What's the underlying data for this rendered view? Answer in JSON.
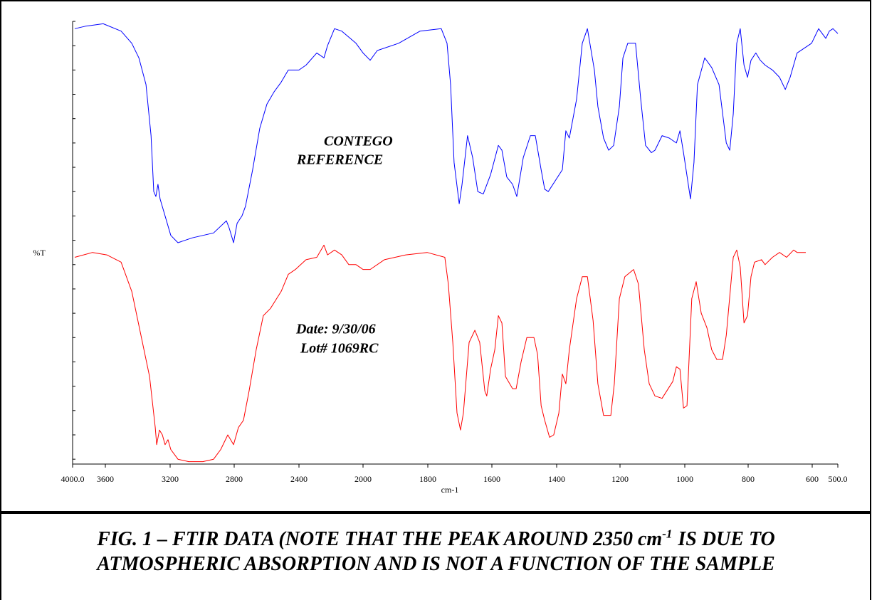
{
  "chart_data": {
    "type": "line",
    "xlabel": "cm-1",
    "ylabel": "%T",
    "xlim": [
      4000,
      500
    ],
    "xticks": [
      {
        "value": 4000,
        "label": "4000.0"
      },
      3600,
      3200,
      2800,
      2400,
      2000,
      1800,
      1600,
      1400,
      1200,
      1000,
      800,
      600,
      {
        "value": 500,
        "label": "500.0"
      }
    ],
    "ylim": [
      -0.2,
      18
    ],
    "yticks": [
      0,
      1,
      2,
      3,
      4,
      5,
      6,
      7,
      8,
      9,
      10,
      11,
      12,
      13,
      14,
      15,
      16,
      17,
      18
    ],
    "annotations": [
      "CONTEGO",
      "REFERENCE",
      "Date: 9/30/06",
      "Lot# 1069RC"
    ],
    "series": [
      {
        "color": "#0000ff",
        "x": [
          3974,
          3843,
          3626,
          3503,
          3437,
          3393,
          3349,
          3318,
          3301,
          3288,
          3275,
          3262,
          3231,
          3196,
          3151,
          3062,
          2929,
          2849,
          2831,
          2804,
          2782,
          2752,
          2730,
          2686,
          2642,
          2598,
          2554,
          2510,
          2466,
          2400,
          2356,
          2289,
          2244,
          2222,
          2178,
          2133,
          2044,
          2000,
          1978,
          1956,
          1890,
          1824,
          1758,
          1740,
          1729,
          1718,
          1702,
          1693,
          1676,
          1660,
          1644,
          1627,
          1604,
          1580,
          1569,
          1554,
          1536,
          1523,
          1503,
          1481,
          1466,
          1448,
          1437,
          1426,
          1382,
          1371,
          1360,
          1337,
          1319,
          1303,
          1281,
          1270,
          1252,
          1236,
          1220,
          1202,
          1191,
          1176,
          1152,
          1136,
          1121,
          1103,
          1092,
          1070,
          1048,
          1026,
          1015,
          1004,
          982,
          971,
          960,
          937,
          915,
          892,
          869,
          858,
          847,
          836,
          825,
          813,
          802,
          791,
          776,
          762,
          747,
          724,
          702,
          684,
          669,
          647,
          602,
          575,
          547,
          533,
          519,
          500
        ],
        "values": [
          17.7,
          17.8,
          17.9,
          17.6,
          17.1,
          16.5,
          15.4,
          13.3,
          11.0,
          10.8,
          11.3,
          10.7,
          10.0,
          9.2,
          8.9,
          9.1,
          9.3,
          9.8,
          9.5,
          8.9,
          9.7,
          10.0,
          10.4,
          11.9,
          13.6,
          14.6,
          15.1,
          15.5,
          16.0,
          16.0,
          16.2,
          16.7,
          16.5,
          17.0,
          17.7,
          17.6,
          17.1,
          16.7,
          16.4,
          16.8,
          17.1,
          17.6,
          17.7,
          17.1,
          15.4,
          12.2,
          10.5,
          11.3,
          13.3,
          12.4,
          11.0,
          10.9,
          11.7,
          12.9,
          12.7,
          11.6,
          11.3,
          10.8,
          12.4,
          13.3,
          13.3,
          11.9,
          11.1,
          11.0,
          11.9,
          13.5,
          13.2,
          14.8,
          17.1,
          17.7,
          16.0,
          14.5,
          13.2,
          12.7,
          12.9,
          14.5,
          16.5,
          17.1,
          17.1,
          14.8,
          12.9,
          12.6,
          12.7,
          13.3,
          13.2,
          13.0,
          13.5,
          12.6,
          10.7,
          12.2,
          15.4,
          16.5,
          16.1,
          15.4,
          13.0,
          12.7,
          14.2,
          17.1,
          17.7,
          16.2,
          15.7,
          16.4,
          16.7,
          16.4,
          16.2,
          16.0,
          15.7,
          15.2,
          15.7,
          16.7,
          17.1,
          17.7,
          17.3,
          17.6,
          17.7,
          17.5
        ]
      },
      {
        "color": "#ff0000",
        "x": [
          3974,
          3757,
          3591,
          3503,
          3437,
          3371,
          3327,
          3292,
          3283,
          3266,
          3248,
          3231,
          3213,
          3196,
          3151,
          3084,
          2996,
          2929,
          2884,
          2840,
          2804,
          2774,
          2743,
          2708,
          2664,
          2620,
          2576,
          2510,
          2466,
          2422,
          2356,
          2289,
          2244,
          2222,
          2178,
          2133,
          2089,
          2044,
          2000,
          1978,
          1934,
          1868,
          1802,
          1747,
          1736,
          1722,
          1709,
          1698,
          1689,
          1671,
          1653,
          1638,
          1622,
          1616,
          1604,
          1591,
          1580,
          1569,
          1558,
          1536,
          1525,
          1510,
          1492,
          1470,
          1459,
          1448,
          1437,
          1422,
          1409,
          1393,
          1382,
          1371,
          1360,
          1337,
          1319,
          1303,
          1285,
          1270,
          1252,
          1229,
          1218,
          1202,
          1185,
          1158,
          1143,
          1125,
          1110,
          1092,
          1070,
          1037,
          1026,
          1015,
          1004,
          993,
          978,
          964,
          948,
          930,
          915,
          899,
          881,
          869,
          847,
          836,
          825,
          813,
          802,
          791,
          780,
          758,
          747,
          724,
          702,
          680,
          658,
          647,
          620
        ],
        "values": [
          8.3,
          8.5,
          8.4,
          8.1,
          6.9,
          4.8,
          3.4,
          1.3,
          0.6,
          1.2,
          1.0,
          0.6,
          0.8,
          0.4,
          0.0,
          -0.1,
          -0.1,
          0.0,
          0.4,
          1.0,
          0.6,
          1.3,
          1.6,
          2.8,
          4.5,
          5.9,
          6.2,
          6.9,
          7.6,
          7.8,
          8.2,
          8.3,
          8.8,
          8.4,
          8.6,
          8.4,
          8.0,
          8.0,
          7.8,
          7.8,
          8.2,
          8.4,
          8.5,
          8.3,
          7.2,
          4.8,
          1.9,
          1.2,
          1.9,
          4.8,
          5.3,
          4.8,
          2.8,
          2.6,
          3.7,
          4.5,
          5.9,
          5.6,
          3.4,
          2.9,
          2.9,
          4.0,
          5.0,
          5.0,
          4.3,
          2.2,
          1.6,
          0.9,
          1.0,
          1.9,
          3.5,
          3.1,
          4.5,
          6.6,
          7.5,
          7.5,
          5.7,
          3.1,
          1.8,
          1.8,
          3.1,
          6.6,
          7.5,
          7.8,
          7.2,
          4.5,
          3.1,
          2.6,
          2.5,
          3.2,
          3.8,
          3.7,
          2.1,
          2.2,
          6.6,
          7.3,
          6.0,
          5.4,
          4.5,
          4.1,
          4.1,
          5.1,
          8.3,
          8.6,
          7.9,
          5.6,
          5.9,
          7.5,
          8.1,
          8.2,
          8.0,
          8.3,
          8.5,
          8.3,
          8.6,
          8.5,
          8.5
        ]
      }
    ]
  },
  "caption": [
    "FIG. 1 – FTIR DATA (NOTE THAT THE PEAK AROUND 2350 cm",
    "-1",
    "IS DUE TO",
    "ATMOSPHERIC ABSORPTION AND IS NOT A FUNCTION OF THE SAMPLE"
  ]
}
